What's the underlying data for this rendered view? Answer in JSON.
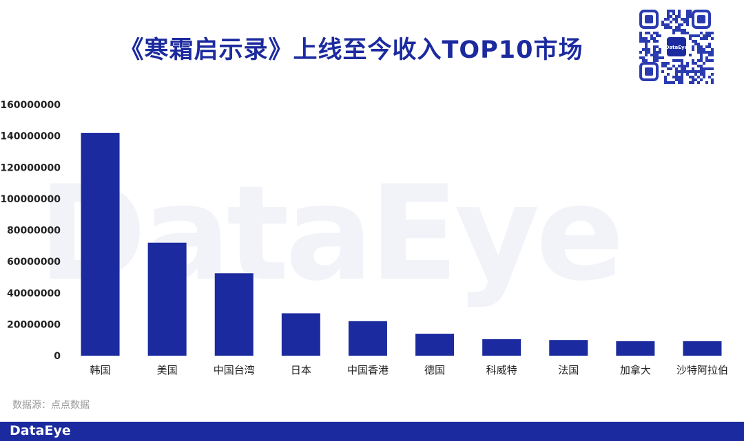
{
  "colors": {
    "title": "#1b2a9e",
    "bar": "#1b2a9e",
    "footer_band": "#1b2a9e",
    "text": "#222222",
    "muted": "#999999",
    "watermark": "#f1f3f8"
  },
  "watermark_text": "DataEye",
  "qr_logo_text": "DataEye",
  "source_text": "数据源：点点数据",
  "footer_brand": "DataEye",
  "chart_data": {
    "type": "bar",
    "title": "《寒霜启示录》上线至今收入TOP10市场",
    "xlabel": "",
    "ylabel": "",
    "categories": [
      "韩国",
      "美国",
      "中国台湾",
      "日本",
      "中国香港",
      "德国",
      "科威特",
      "法国",
      "加拿大",
      "沙特阿拉伯"
    ],
    "values": [
      142000000,
      72000000,
      52500000,
      27000000,
      22000000,
      14000000,
      10500000,
      10000000,
      9200000,
      9200000
    ],
    "ylim": [
      0,
      160000000
    ],
    "yticks": [
      "0",
      "20000000",
      "40000000",
      "60000000",
      "80000000",
      "100000000",
      "120000000",
      "140000000",
      "160000000"
    ],
    "grid": false,
    "legend": "none"
  }
}
